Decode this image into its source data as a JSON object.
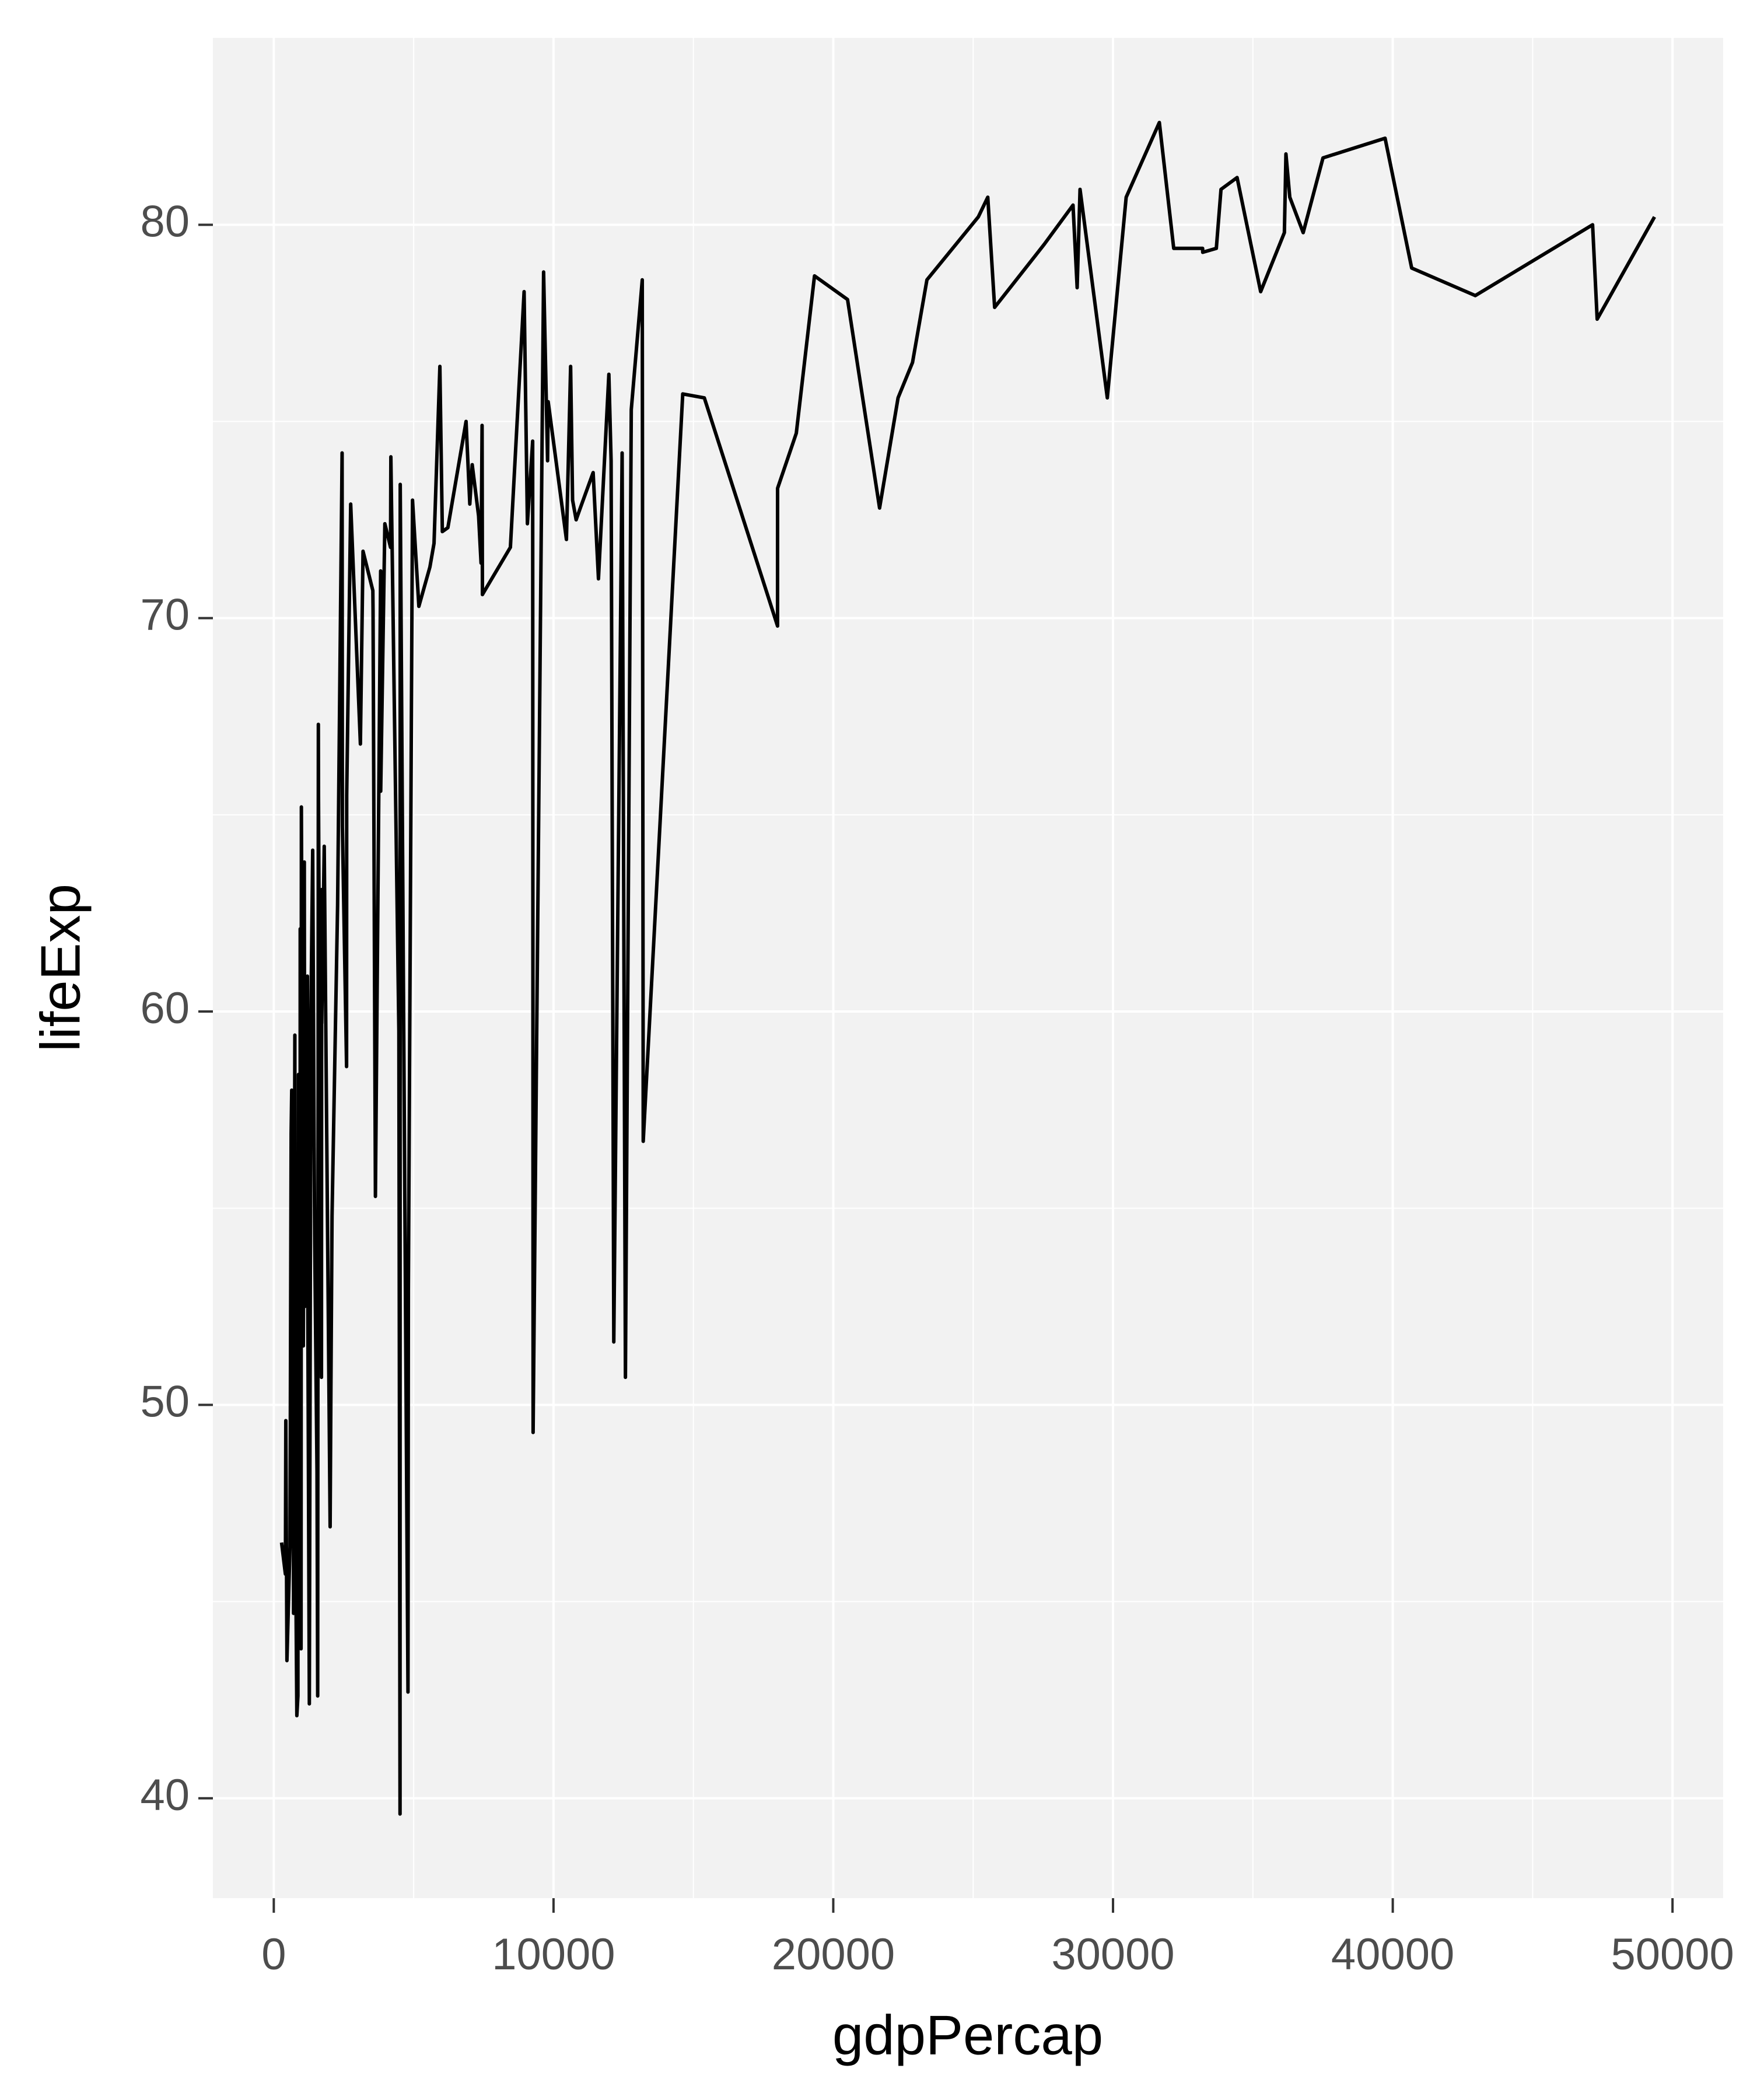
{
  "chart_data": {
    "type": "line",
    "x_label": "gdpPercap",
    "y_label": "lifeExp",
    "color": "#000000",
    "panel_color": "#f2f2f2",
    "grid": true,
    "minor_grid": true,
    "xlim": [
      -2176,
      51811
    ],
    "ylim": [
      37.46,
      84.75
    ],
    "xticks": [
      0,
      10000,
      20000,
      30000,
      40000,
      50000
    ],
    "yticks": [
      40,
      50,
      60,
      70,
      80
    ],
    "x": [
      278,
      415,
      430,
      470,
      579,
      620,
      641,
      691,
      706,
      753,
      759,
      824,
      863,
      863,
      883,
      926,
      943,
      944,
      975,
      986,
      1043,
      1045,
      1056,
      1091,
      1107,
      1202,
      1217,
      1271,
      1328,
      1391,
      1441,
      1463,
      1545,
      1569,
      1593,
      1598,
      1704,
      1712,
      1714,
      1803,
      2014,
      2042,
      2082,
      2281,
      2442,
      2452,
      2602,
      2606,
      2749,
      3096,
      3190,
      3541,
      3548,
      3633,
      3820,
      3822,
      3970,
      4173,
      4185,
      4471,
      4513,
      4519,
      4520,
      4797,
      4811,
      4959,
      5186,
      5581,
      5728,
      5937,
      6025,
      6223,
      6873,
      7007,
      7093,
      7321,
      7409,
      7446,
      7458,
      8458,
      8948,
      9066,
      9254,
      9270,
      9645,
      9787,
      9809,
      10461,
      10611,
      10681,
      10808,
      10957,
      11416,
      11606,
      11978,
      12058,
      12154,
      12452,
      12570,
      12779,
      13172,
      13206,
      14619,
      15390,
      18008,
      18009,
      18678,
      19329,
      20510,
      21655,
      22316,
      22833,
      23348,
      25185,
      25523,
      25768,
      27538,
      28570,
      28718,
      28821,
      29796,
      30470,
      31656,
      32170,
      33203,
      33207,
      33693,
      33860,
      34435,
      35278,
      36126,
      36181,
      36319,
      36798,
      37506,
      39725,
      40676,
      42952,
      47143,
      47307,
      49357
    ],
    "values": [
      46.5,
      45.7,
      49.6,
      43.5,
      46.4,
      56.9,
      58.0,
      53.0,
      44.7,
      59.4,
      48.3,
      42.1,
      42.6,
      46.2,
      58.4,
      48.2,
      56.0,
      62.1,
      43.8,
      65.2,
      54.5,
      59.4,
      51.5,
      63.8,
      52.5,
      60.9,
      52.3,
      42.4,
      60.0,
      64.1,
      56.7,
      54.1,
      48.3,
      42.6,
      67.3,
      65.5,
      50.7,
      63.1,
      59.7,
      64.2,
      46.9,
      50.4,
      54.8,
      62.7,
      74.2,
      64.7,
      58.6,
      65.5,
      72.9,
      66.8,
      71.7,
      70.7,
      70.2,
      55.3,
      71.2,
      65.6,
      72.4,
      71.8,
      74.1,
      59.5,
      39.6,
      72.5,
      73.4,
      42.7,
      52.9,
      73.0,
      70.3,
      71.3,
      71.9,
      76.4,
      72.2,
      72.3,
      75.0,
      72.9,
      73.9,
      72.6,
      71.4,
      74.9,
      70.6,
      71.8,
      78.3,
      72.4,
      74.5,
      49.3,
      78.8,
      74.0,
      75.5,
      72.0,
      76.4,
      73.0,
      72.5,
      72.8,
      73.7,
      71.0,
      76.2,
      74.0,
      51.6,
      74.2,
      50.7,
      75.3,
      78.6,
      56.7,
      75.7,
      75.6,
      69.8,
      73.3,
      74.7,
      78.7,
      78.1,
      72.8,
      75.6,
      76.5,
      78.6,
      80.2,
      80.7,
      77.9,
      79.5,
      80.5,
      78.4,
      80.9,
      75.6,
      80.7,
      82.6,
      79.4,
      79.4,
      79.3,
      79.4,
      80.9,
      81.2,
      78.3,
      79.8,
      81.8,
      80.7,
      79.8,
      81.7,
      82.2,
      78.9,
      78.2,
      80.0,
      77.6,
      80.2
    ]
  }
}
